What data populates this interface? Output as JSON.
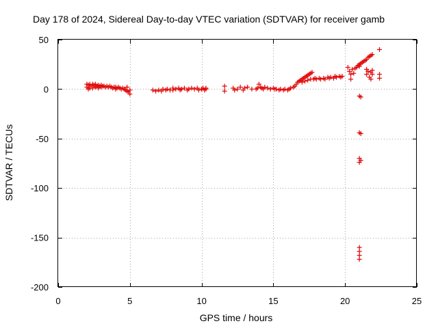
{
  "chart_data": {
    "type": "scatter",
    "title": "Day 178 of 2024, Sidereal Day-to-day VTEC variation (SDTVAR) for receiver gamb",
    "xlabel": "GPS time / hours",
    "ylabel": "SDTVAR / TECUs",
    "xlim": [
      0,
      25
    ],
    "ylim": [
      -200,
      50
    ],
    "xticks": [
      0,
      5,
      10,
      15,
      20,
      25
    ],
    "yticks": [
      -200,
      -150,
      -100,
      -50,
      0,
      50
    ],
    "grid": true,
    "marker": "+",
    "color": "#e00000",
    "series": [
      {
        "name": "SDTVAR",
        "points": [
          [
            2.0,
            5
          ],
          [
            2.0,
            2
          ],
          [
            2.1,
            4
          ],
          [
            2.1,
            0
          ],
          [
            2.2,
            5
          ],
          [
            2.2,
            1
          ],
          [
            2.3,
            3
          ],
          [
            2.4,
            5
          ],
          [
            2.4,
            1
          ],
          [
            2.5,
            4
          ],
          [
            2.6,
            2
          ],
          [
            2.6,
            5
          ],
          [
            2.7,
            3
          ],
          [
            2.8,
            4
          ],
          [
            2.8,
            1
          ],
          [
            2.9,
            3
          ],
          [
            3.0,
            4
          ],
          [
            3.0,
            2
          ],
          [
            3.1,
            3
          ],
          [
            3.2,
            3
          ],
          [
            3.3,
            2
          ],
          [
            3.4,
            3
          ],
          [
            3.5,
            2
          ],
          [
            3.6,
            3
          ],
          [
            3.7,
            2
          ],
          [
            3.8,
            1
          ],
          [
            3.9,
            2
          ],
          [
            4.0,
            2
          ],
          [
            4.0,
            0
          ],
          [
            4.1,
            1
          ],
          [
            4.2,
            2
          ],
          [
            4.3,
            1
          ],
          [
            4.4,
            0
          ],
          [
            4.5,
            1
          ],
          [
            4.6,
            0
          ],
          [
            4.7,
            -1
          ],
          [
            4.8,
            -2
          ],
          [
            4.8,
            2
          ],
          [
            4.9,
            -3
          ],
          [
            5.0,
            -5
          ],
          [
            5.0,
            -1
          ],
          [
            6.6,
            -1
          ],
          [
            6.8,
            -2
          ],
          [
            7.0,
            -1
          ],
          [
            7.2,
            -2
          ],
          [
            7.3,
            0
          ],
          [
            7.5,
            -1
          ],
          [
            7.6,
            0
          ],
          [
            7.8,
            -1
          ],
          [
            8.0,
            1
          ],
          [
            8.0,
            -1
          ],
          [
            8.2,
            0
          ],
          [
            8.4,
            1
          ],
          [
            8.5,
            -1
          ],
          [
            8.6,
            0
          ],
          [
            8.8,
            1
          ],
          [
            9.0,
            -1
          ],
          [
            9.1,
            0
          ],
          [
            9.3,
            1
          ],
          [
            9.5,
            0
          ],
          [
            9.7,
            1
          ],
          [
            9.8,
            -1
          ],
          [
            10.0,
            0
          ],
          [
            10.1,
            1
          ],
          [
            10.2,
            -1
          ],
          [
            10.3,
            1
          ],
          [
            10.3,
            0
          ],
          [
            11.6,
            3
          ],
          [
            11.6,
            -2
          ],
          [
            12.2,
            1
          ],
          [
            12.3,
            -1
          ],
          [
            12.5,
            0
          ],
          [
            12.7,
            2
          ],
          [
            12.9,
            -1
          ],
          [
            13.0,
            1
          ],
          [
            13.2,
            2
          ],
          [
            13.5,
            0
          ],
          [
            13.8,
            0
          ],
          [
            13.9,
            1
          ],
          [
            14.0,
            5
          ],
          [
            14.1,
            2
          ],
          [
            14.2,
            1
          ],
          [
            14.3,
            0
          ],
          [
            14.4,
            2
          ],
          [
            14.6,
            1
          ],
          [
            14.8,
            0
          ],
          [
            15.0,
            1
          ],
          [
            15.1,
            0
          ],
          [
            15.2,
            0
          ],
          [
            15.4,
            -1
          ],
          [
            15.5,
            0
          ],
          [
            15.7,
            -1
          ],
          [
            15.8,
            0
          ],
          [
            16.0,
            -1
          ],
          [
            16.1,
            0
          ],
          [
            16.2,
            1
          ],
          [
            16.4,
            2
          ],
          [
            16.5,
            3
          ],
          [
            16.6,
            5
          ],
          [
            16.7,
            7
          ],
          [
            16.8,
            8
          ],
          [
            16.9,
            9
          ],
          [
            17.0,
            10
          ],
          [
            17.1,
            11
          ],
          [
            17.2,
            12
          ],
          [
            17.3,
            13
          ],
          [
            17.4,
            14
          ],
          [
            17.5,
            15
          ],
          [
            17.6,
            16
          ],
          [
            17.7,
            17
          ],
          [
            17.0,
            7
          ],
          [
            17.2,
            8
          ],
          [
            17.4,
            9
          ],
          [
            17.6,
            10
          ],
          [
            17.8,
            10
          ],
          [
            17.9,
            11
          ],
          [
            18.0,
            10
          ],
          [
            18.2,
            11
          ],
          [
            18.3,
            10
          ],
          [
            18.5,
            11
          ],
          [
            18.6,
            10
          ],
          [
            18.8,
            12
          ],
          [
            18.9,
            11
          ],
          [
            19.0,
            12
          ],
          [
            19.2,
            11
          ],
          [
            19.3,
            13
          ],
          [
            19.4,
            12
          ],
          [
            19.6,
            13
          ],
          [
            19.7,
            12
          ],
          [
            19.8,
            13
          ],
          [
            20.2,
            22
          ],
          [
            20.3,
            18
          ],
          [
            20.4,
            15
          ],
          [
            20.4,
            10
          ],
          [
            20.5,
            20
          ],
          [
            20.6,
            16
          ],
          [
            20.7,
            21
          ],
          [
            20.8,
            22
          ],
          [
            20.9,
            24
          ],
          [
            21.0,
            23
          ],
          [
            21.0,
            25
          ],
          [
            21.1,
            26
          ],
          [
            21.2,
            27
          ],
          [
            21.3,
            28
          ],
          [
            21.4,
            29
          ],
          [
            21.5,
            30
          ],
          [
            21.6,
            32
          ],
          [
            21.7,
            33
          ],
          [
            21.8,
            34
          ],
          [
            21.9,
            35
          ],
          [
            21.5,
            20
          ],
          [
            21.5,
            15
          ],
          [
            21.6,
            18
          ],
          [
            21.7,
            12
          ],
          [
            21.8,
            17
          ],
          [
            21.8,
            10
          ],
          [
            21.9,
            15
          ],
          [
            21.9,
            19
          ],
          [
            22.4,
            40
          ],
          [
            22.4,
            15
          ],
          [
            22.4,
            11
          ],
          [
            21.0,
            -7
          ],
          [
            21.1,
            -8
          ],
          [
            21.0,
            -44
          ],
          [
            21.1,
            -45
          ],
          [
            21.0,
            -70
          ],
          [
            21.1,
            -72
          ],
          [
            21.0,
            -74
          ],
          [
            21.0,
            -160
          ],
          [
            21.0,
            -164
          ],
          [
            21.0,
            -168
          ],
          [
            21.0,
            -172
          ]
        ]
      }
    ]
  }
}
